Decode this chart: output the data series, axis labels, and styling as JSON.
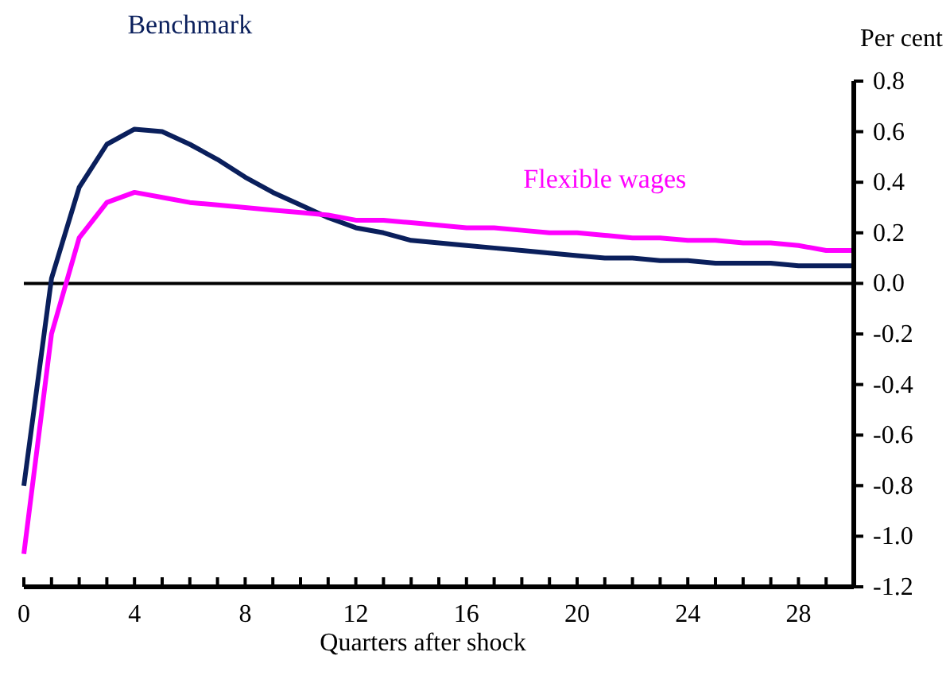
{
  "chart_data": {
    "type": "line",
    "xlabel": "Quarters after shock",
    "ylabel": "Per cent",
    "x": [
      0,
      1,
      2,
      3,
      4,
      5,
      6,
      7,
      8,
      9,
      10,
      11,
      12,
      13,
      14,
      15,
      16,
      17,
      18,
      19,
      20,
      21,
      22,
      23,
      24,
      25,
      26,
      27,
      28,
      29,
      30
    ],
    "xlim": [
      0,
      30
    ],
    "xticks": [
      0,
      {
        "value": 1,
        "label": null
      },
      {
        "value": 2,
        "label": null
      },
      {
        "value": 3,
        "label": null
      },
      4,
      {
        "value": 5,
        "label": null
      },
      {
        "value": 6,
        "label": null
      },
      {
        "value": 7,
        "label": null
      },
      8,
      {
        "value": 9,
        "label": null
      },
      {
        "value": 10,
        "label": null
      },
      {
        "value": 11,
        "label": null
      },
      12,
      {
        "value": 13,
        "label": null
      },
      {
        "value": 14,
        "label": null
      },
      {
        "value": 15,
        "label": null
      },
      16,
      {
        "value": 17,
        "label": null
      },
      {
        "value": 18,
        "label": null
      },
      {
        "value": 19,
        "label": null
      },
      20,
      {
        "value": 21,
        "label": null
      },
      {
        "value": 22,
        "label": null
      },
      {
        "value": 23,
        "label": null
      },
      24,
      {
        "value": 25,
        "label": null
      },
      {
        "value": 26,
        "label": null
      },
      {
        "value": 27,
        "label": null
      },
      28,
      {
        "value": 29,
        "label": null
      },
      {
        "value": 30,
        "label": null
      }
    ],
    "ylim": [
      -1.2,
      0.8
    ],
    "yticks": [
      {
        "value": -1.2,
        "label": "-1.2"
      },
      {
        "value": -1,
        "label": "-1.0"
      },
      {
        "value": -0.8,
        "label": "-0.8"
      },
      {
        "value": -0.6,
        "label": "-0.6"
      },
      {
        "value": -0.4,
        "label": "-0.4"
      },
      {
        "value": -0.2,
        "label": "-0.2"
      },
      {
        "value": 0,
        "label": "0.0"
      },
      {
        "value": 0.2,
        "label": "0.2"
      },
      {
        "value": 0.4,
        "label": "0.4"
      },
      {
        "value": 0.6,
        "label": "0.6"
      },
      {
        "value": 0.8,
        "label": "0.8"
      }
    ],
    "ref_lines": [
      {
        "axis": "y",
        "value": 0,
        "color": "#000000"
      }
    ],
    "legend": false,
    "grid": false,
    "marker": "none",
    "line_style": "solid",
    "series": [
      {
        "name": "Benchmark",
        "color": "#0a1f5c",
        "values": [
          -0.8,
          0.02,
          0.38,
          0.55,
          0.61,
          0.6,
          0.55,
          0.49,
          0.42,
          0.36,
          0.31,
          0.26,
          0.22,
          0.2,
          0.17,
          0.16,
          0.15,
          0.14,
          0.13,
          0.12,
          0.11,
          0.1,
          0.1,
          0.09,
          0.09,
          0.08,
          0.08,
          0.08,
          0.07,
          0.07,
          0.07
        ]
      },
      {
        "name": "Flexible wages",
        "color": "#ff00ff",
        "values": [
          -1.07,
          -0.2,
          0.18,
          0.32,
          0.36,
          0.34,
          0.32,
          0.31,
          0.3,
          0.29,
          0.28,
          0.27,
          0.25,
          0.25,
          0.24,
          0.23,
          0.22,
          0.22,
          0.21,
          0.2,
          0.2,
          0.19,
          0.18,
          0.18,
          0.17,
          0.17,
          0.16,
          0.16,
          0.15,
          0.13,
          0.13
        ]
      }
    ]
  }
}
